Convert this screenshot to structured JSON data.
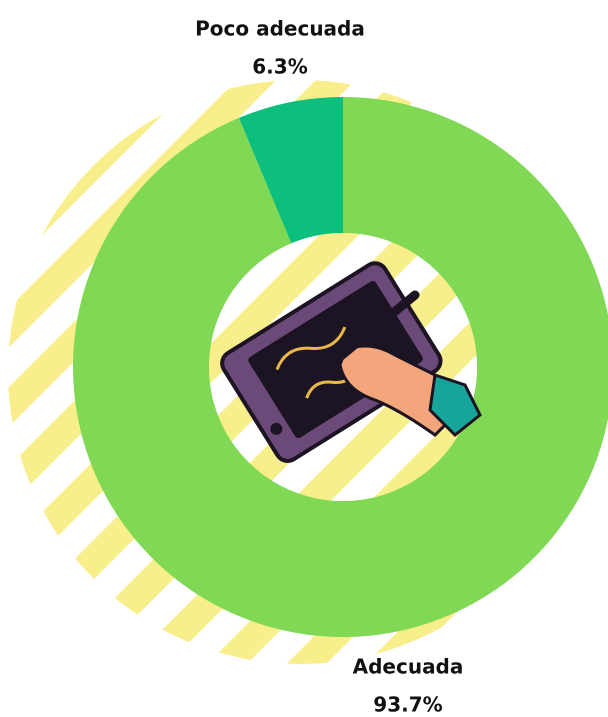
{
  "chart_data": {
    "type": "donut",
    "categories": [
      "Adecuada",
      "Poco adecuada"
    ],
    "values": [
      93.7,
      6.3
    ],
    "value_labels": [
      "93.7%",
      "6.3%"
    ],
    "colors": [
      "#80d855",
      "#0dbf7c"
    ]
  }
}
